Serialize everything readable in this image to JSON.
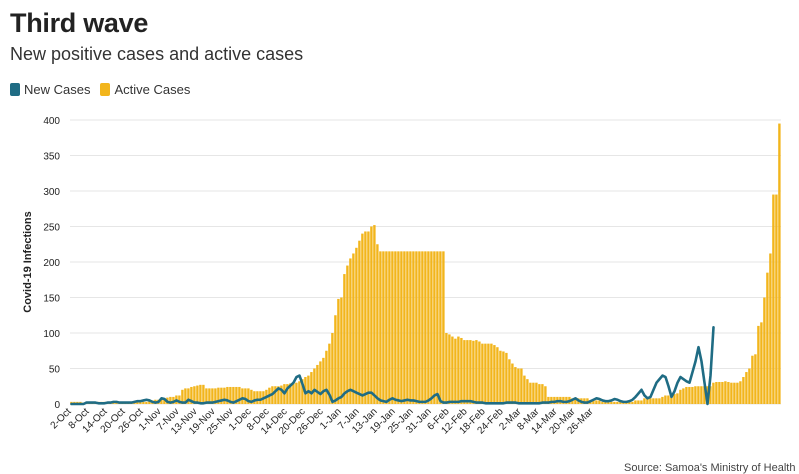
{
  "title": "Third wave",
  "subtitle": "New positive cases and active cases",
  "source": "Source: Samoa's Ministry of Health",
  "colors": {
    "new_cases": "#1f6c84",
    "active_cases": "#f2b51c",
    "grid": "#e6e6e6"
  },
  "chart_data": {
    "type": "bar",
    "ylabel": "Covid-19 Infections",
    "ylim": [
      0,
      400
    ],
    "yticks": [
      0,
      50,
      100,
      150,
      200,
      250,
      300,
      350,
      400
    ],
    "xtick_labels": [
      "2-Oct",
      "8-Oct",
      "14-Oct",
      "20-Oct",
      "26-Oct",
      "1-Nov",
      "7-Nov",
      "13-Nov",
      "19-Nov",
      "25-Nov",
      "1-Dec",
      "8-Dec",
      "14-Dec",
      "20-Dec",
      "26-Dec",
      "1-Jan",
      "7-Jan",
      "13-Jan",
      "19-Jan",
      "25-Jan",
      "31-Jan",
      "6-Feb",
      "12-Feb",
      "18-Feb",
      "24-Feb",
      "2-Mar",
      "8-Mar",
      "14-Mar",
      "20-Mar",
      "26-Mar"
    ],
    "x_start": "2-Oct",
    "legend_position": "top-left",
    "series": [
      {
        "name": "New Cases",
        "type": "line",
        "values": [
          0,
          0,
          0,
          0,
          0,
          2,
          2,
          2,
          2,
          1,
          1,
          1,
          2,
          2,
          3,
          3,
          2,
          2,
          2,
          2,
          2,
          3,
          4,
          4,
          5,
          6,
          5,
          3,
          2,
          3,
          8,
          7,
          3,
          2,
          3,
          5,
          3,
          2,
          2,
          6,
          4,
          2,
          2,
          1,
          1,
          2,
          2,
          2,
          3,
          4,
          5,
          6,
          5,
          3,
          2,
          4,
          6,
          8,
          7,
          4,
          3,
          5,
          6,
          6,
          8,
          10,
          12,
          14,
          18,
          22,
          20,
          15,
          22,
          26,
          30,
          38,
          40,
          28,
          15,
          18,
          15,
          20,
          17,
          14,
          18,
          20,
          13,
          3,
          5,
          8,
          10,
          15,
          18,
          20,
          18,
          16,
          14,
          12,
          14,
          16,
          16,
          12,
          8,
          5,
          4,
          3,
          6,
          8,
          6,
          5,
          4,
          5,
          6,
          5,
          5,
          4,
          3,
          3,
          3,
          5,
          8,
          12,
          14,
          4,
          2,
          2,
          3,
          3,
          3,
          3,
          4,
          4,
          4,
          4,
          3,
          2,
          2,
          2,
          1,
          1,
          1,
          1,
          1,
          1,
          1,
          2,
          2,
          2,
          2,
          1,
          1,
          1,
          1,
          1,
          1,
          1,
          1,
          2,
          2,
          2,
          3,
          3,
          4,
          4,
          3,
          3,
          4,
          6,
          8,
          5,
          3,
          2,
          2,
          4,
          6,
          8,
          7,
          5,
          4,
          4,
          5,
          7,
          6,
          4,
          3,
          3,
          4,
          6,
          10,
          15,
          20,
          12,
          8,
          10,
          20,
          30,
          35,
          40,
          38,
          25,
          10,
          18,
          30,
          38,
          35,
          32,
          30,
          45,
          60,
          80,
          60,
          30,
          0,
          40,
          108
        ]
      },
      {
        "name": "Active Cases",
        "type": "bar",
        "values": [
          3,
          3,
          3,
          3,
          2,
          2,
          2,
          2,
          3,
          3,
          3,
          3,
          3,
          3,
          3,
          3,
          3,
          3,
          3,
          3,
          3,
          3,
          3,
          3,
          3,
          3,
          5,
          5,
          6,
          6,
          7,
          8,
          9,
          10,
          10,
          12,
          12,
          20,
          22,
          22,
          24,
          25,
          26,
          27,
          27,
          22,
          22,
          22,
          22,
          23,
          23,
          23,
          24,
          24,
          24,
          24,
          24,
          22,
          22,
          22,
          20,
          18,
          18,
          18,
          18,
          20,
          23,
          25,
          25,
          25,
          26,
          28,
          28,
          29,
          29,
          30,
          32,
          35,
          38,
          40,
          45,
          50,
          55,
          60,
          65,
          75,
          85,
          100,
          125,
          148,
          150,
          183,
          195,
          205,
          212,
          220,
          230,
          240,
          243,
          243,
          250,
          252,
          225,
          215,
          215,
          215,
          215,
          215,
          215,
          215,
          215,
          215,
          215,
          215,
          215,
          215,
          215,
          215,
          215,
          215,
          215,
          215,
          215,
          215,
          215,
          100,
          98,
          95,
          92,
          95,
          93,
          90,
          90,
          90,
          89,
          90,
          88,
          85,
          85,
          85,
          85,
          83,
          80,
          75,
          74,
          72,
          63,
          57,
          52,
          50,
          50,
          40,
          35,
          30,
          30,
          30,
          28,
          28,
          25,
          10,
          10,
          10,
          10,
          10,
          10,
          10,
          10,
          8,
          8,
          8,
          8,
          8,
          8,
          5,
          5,
          5,
          5,
          3,
          3,
          3,
          3,
          3,
          3,
          3,
          3,
          3,
          3,
          3,
          5,
          5,
          5,
          8,
          8,
          8,
          8,
          8,
          8,
          10,
          12,
          12,
          13,
          14,
          15,
          20,
          22,
          24,
          24,
          24,
          25,
          25,
          25,
          25,
          25,
          25,
          30,
          31,
          31,
          31,
          32,
          31,
          30,
          30,
          30,
          32,
          38,
          45,
          50,
          68,
          70,
          110,
          115,
          150,
          185,
          212,
          295,
          295,
          395
        ]
      }
    ]
  }
}
